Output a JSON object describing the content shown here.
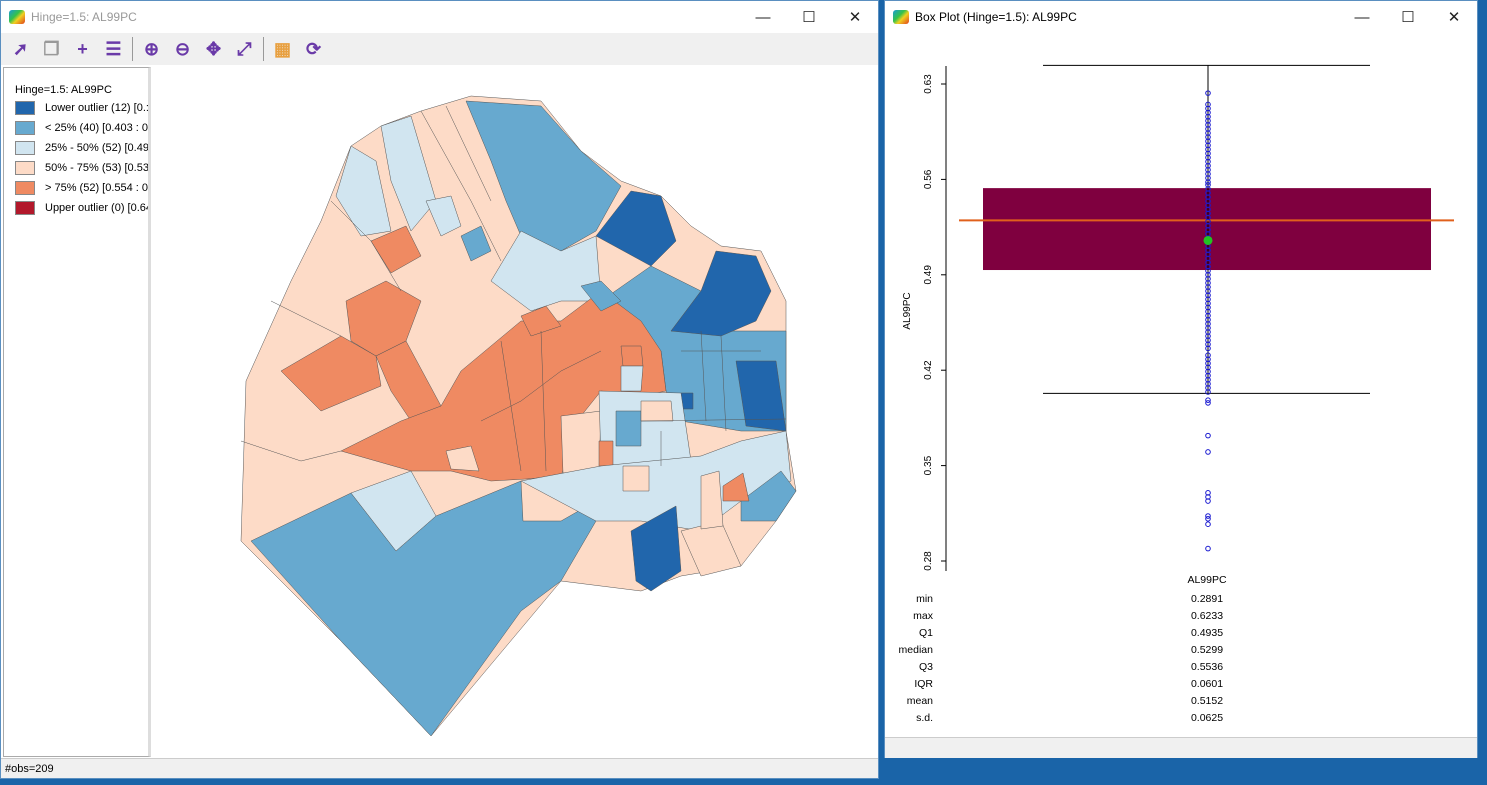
{
  "map_window": {
    "title": "Hinge=1.5: AL99PC",
    "toolbar": [
      "select-tool",
      "copy-map",
      "add-layer",
      "layers",
      "zoom-in",
      "zoom-out",
      "pan",
      "fit-extent",
      "toggle-basemap",
      "refresh"
    ],
    "legend": {
      "title": "Hinge=1.5: AL99PC",
      "items": [
        {
          "label": "Lower outlier (12)  [0.:",
          "color": "#2166ac"
        },
        {
          "label": "< 25% (40)  [0.403 : 0",
          "color": "#67a9cf"
        },
        {
          "label": "25% - 50% (52)  [0.49",
          "color": "#d1e5f0"
        },
        {
          "label": "50% - 75% (53)  [0.53",
          "color": "#fddbc7"
        },
        {
          "label": "> 75% (52)  [0.554 : 0",
          "color": "#ef8a62"
        },
        {
          "label": "Upper outlier (0)  [0.64",
          "color": "#b2182b"
        }
      ]
    },
    "status": "#obs=209"
  },
  "box_window": {
    "title": "Box Plot (Hinge=1.5): AL99PC",
    "stats_header": "AL99PC",
    "stats": [
      {
        "label": "min",
        "value": "0.2891"
      },
      {
        "label": "max",
        "value": "0.6233"
      },
      {
        "label": "Q1",
        "value": "0.4935"
      },
      {
        "label": "median",
        "value": "0.5299"
      },
      {
        "label": "Q3",
        "value": "0.5536"
      },
      {
        "label": "IQR",
        "value": "0.0601"
      },
      {
        "label": "mean",
        "value": "0.5152"
      },
      {
        "label": "s.d.",
        "value": "0.0625"
      }
    ]
  },
  "chart_data": {
    "type": "box",
    "ylabel": "AL99PC",
    "yticks": [
      "0.28",
      "0.35",
      "0.42",
      "0.49",
      "0.56",
      "0.63"
    ],
    "ylim": [
      0.28,
      0.63
    ],
    "q1": 0.4935,
    "median": 0.5299,
    "q3": 0.5536,
    "mean": 0.5152,
    "whisker_low": 0.403,
    "whisker_high": 0.6437,
    "box_color": "#7f003f",
    "median_color": "#e0601c",
    "mean_color": "#22c422",
    "point_color": "#1a1ad0",
    "points": [
      0.6233,
      0.615,
      0.612,
      0.609,
      0.606,
      0.603,
      0.6,
      0.597,
      0.594,
      0.591,
      0.588,
      0.585,
      0.582,
      0.579,
      0.576,
      0.573,
      0.57,
      0.567,
      0.564,
      0.561,
      0.558,
      0.556,
      0.553,
      0.55,
      0.547,
      0.544,
      0.541,
      0.538,
      0.535,
      0.532,
      0.529,
      0.526,
      0.523,
      0.52,
      0.517,
      0.514,
      0.511,
      0.508,
      0.505,
      0.502,
      0.499,
      0.496,
      0.493,
      0.49,
      0.487,
      0.484,
      0.481,
      0.478,
      0.475,
      0.472,
      0.469,
      0.466,
      0.463,
      0.46,
      0.457,
      0.454,
      0.451,
      0.448,
      0.445,
      0.442,
      0.439,
      0.436,
      0.431,
      0.428,
      0.425,
      0.422,
      0.419,
      0.416,
      0.413,
      0.41,
      0.407,
      0.404,
      0.398,
      0.396,
      0.372,
      0.36,
      0.33,
      0.327,
      0.324,
      0.313,
      0.311,
      0.307,
      0.2891
    ]
  }
}
